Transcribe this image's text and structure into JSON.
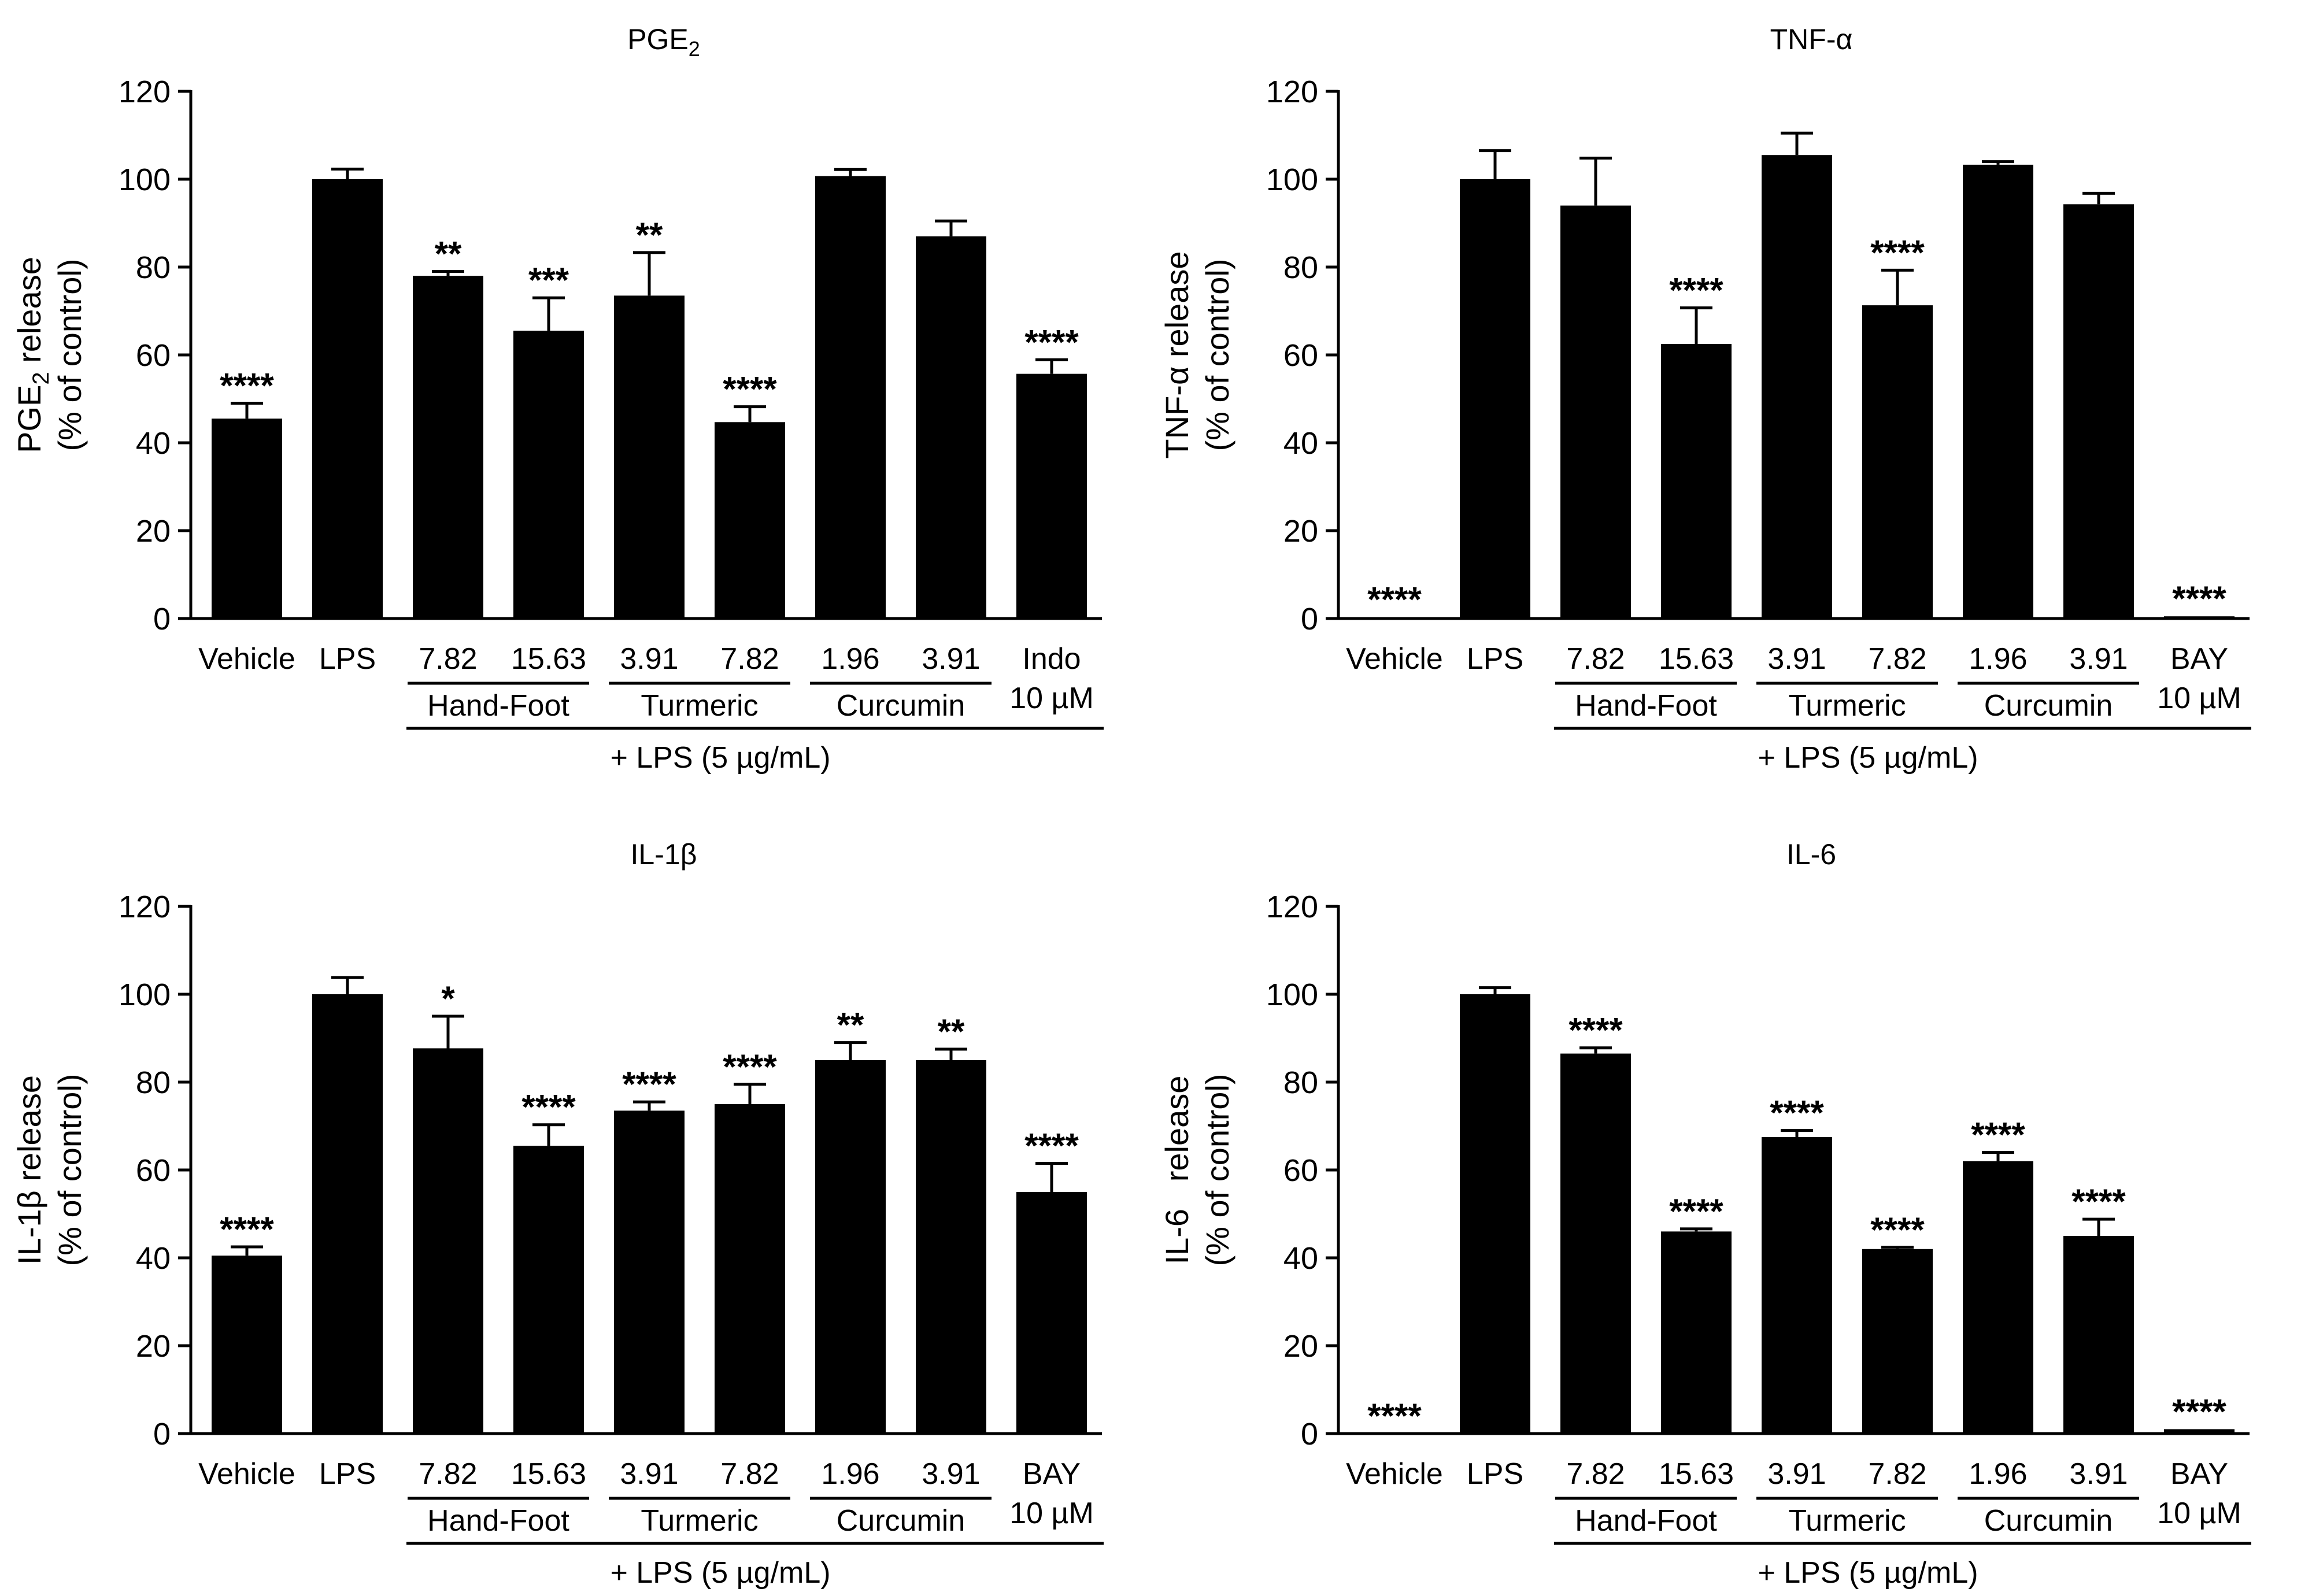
{
  "chart_data": [
    {
      "type": "bar",
      "title": "PGE",
      "title_sub": "2",
      "ylabel_line1": "PGE",
      "ylabel_sub": "2",
      "ylabel_rest": " release",
      "ylabel_line2": "(% of control)",
      "ylim": [
        0,
        120
      ],
      "yticks": [
        0,
        20,
        40,
        60,
        80,
        100,
        120
      ],
      "categories": [
        "Vehicle",
        "LPS",
        "7.82",
        "15.63",
        "3.91",
        "7.82",
        "1.96",
        "3.91",
        "Indo"
      ],
      "last_category_line2": "10 µM",
      "values": [
        45.5,
        100,
        78,
        65.5,
        73.5,
        44.7,
        100.7,
        87,
        55.7
      ],
      "errors": [
        3.5,
        2.3,
        1.0,
        7.5,
        9.8,
        3.5,
        1.5,
        3.5,
        3.2
      ],
      "significance": [
        "****",
        "",
        "**",
        "***",
        "**",
        "****",
        "",
        "",
        "****"
      ],
      "groups": [
        "Hand-Foot",
        "Turmeric",
        "Curcumin"
      ],
      "treatment_label": "+ LPS (5 µg/mL)"
    },
    {
      "type": "bar",
      "title": "TNF-α",
      "title_sub": "",
      "ylabel_line1": "TNF-α",
      "ylabel_sub": "",
      "ylabel_rest": " release",
      "ylabel_line2": "(% of control)",
      "ylim": [
        0,
        120
      ],
      "yticks": [
        0,
        20,
        40,
        60,
        80,
        100,
        120
      ],
      "categories": [
        "Vehicle",
        "LPS",
        "7.82",
        "15.63",
        "3.91",
        "7.82",
        "1.96",
        "3.91",
        "BAY"
      ],
      "last_category_line2": "10 µM",
      "values": [
        0.3,
        100,
        94,
        62.5,
        105.5,
        71.3,
        103.3,
        94.3,
        0.5
      ],
      "errors": [
        0,
        6.5,
        10.8,
        8.2,
        5.0,
        8.0,
        0.7,
        2.5,
        0
      ],
      "significance": [
        "****",
        "",
        "",
        "****",
        "",
        "****",
        "",
        "",
        "****"
      ],
      "groups": [
        "Hand-Foot",
        "Turmeric",
        "Curcumin"
      ],
      "treatment_label": "+ LPS (5 µg/mL)"
    },
    {
      "type": "bar",
      "title": "IL-1β",
      "title_sub": "",
      "ylabel_line1": "IL-1β",
      "ylabel_sub": "",
      "ylabel_rest": " release",
      "ylabel_line2": "(% of control)",
      "ylim": [
        0,
        120
      ],
      "yticks": [
        0,
        20,
        40,
        60,
        80,
        100,
        120
      ],
      "categories": [
        "Vehicle",
        "LPS",
        "7.82",
        "15.63",
        "3.91",
        "7.82",
        "1.96",
        "3.91",
        "BAY"
      ],
      "last_category_line2": "10 µM",
      "values": [
        40.5,
        100,
        87.7,
        65.5,
        73.5,
        75,
        85,
        85,
        55
      ],
      "errors": [
        2.0,
        3.8,
        7.3,
        4.8,
        2.0,
        4.5,
        4.0,
        2.5,
        6.5
      ],
      "significance": [
        "****",
        "",
        "*",
        "****",
        "****",
        "****",
        "**",
        "**",
        "****"
      ],
      "groups": [
        "Hand-Foot",
        "Turmeric",
        "Curcumin"
      ],
      "treatment_label": "+ LPS (5 µg/mL)"
    },
    {
      "type": "bar",
      "title": "IL-6",
      "title_sub": "",
      "ylabel_line1": "IL-6",
      "ylabel_sub": "",
      "ylabel_rest": "   release",
      "ylabel_line2": "(% of control)",
      "ylim": [
        0,
        120
      ],
      "yticks": [
        0,
        20,
        40,
        60,
        80,
        100,
        120
      ],
      "categories": [
        "Vehicle",
        "LPS",
        "7.82",
        "15.63",
        "3.91",
        "7.82",
        "1.96",
        "3.91",
        "BAY"
      ],
      "last_category_line2": "10 µM",
      "values": [
        0,
        100,
        86.5,
        46,
        67.5,
        42,
        62,
        45,
        1
      ],
      "errors": [
        0,
        1.5,
        1.3,
        0.6,
        1.5,
        0.4,
        2.0,
        3.8,
        0
      ],
      "significance": [
        "****",
        "",
        "****",
        "****",
        "****",
        "****",
        "****",
        "****",
        "****"
      ],
      "groups": [
        "Hand-Foot",
        "Turmeric",
        "Curcumin"
      ],
      "treatment_label": "+ LPS (5 µg/mL)"
    }
  ],
  "colors": {
    "bar": "#000000",
    "axis": "#000000",
    "background": "#ffffff"
  }
}
